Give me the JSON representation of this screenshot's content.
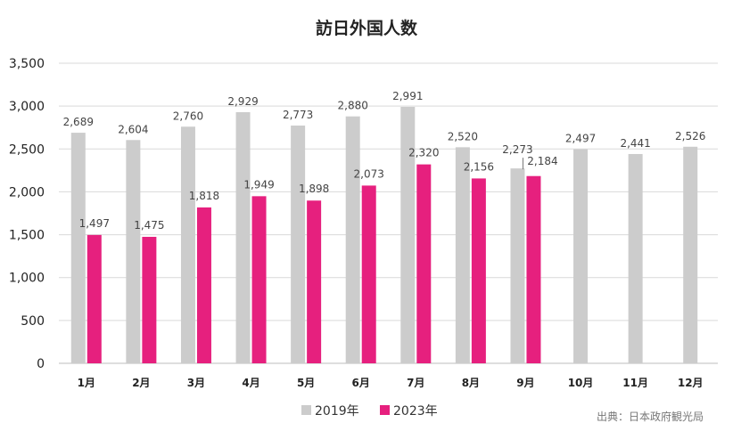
{
  "chart_data": {
    "type": "bar",
    "title": "訪日外国人数",
    "categories": [
      "1月",
      "2月",
      "3月",
      "4月",
      "5月",
      "6月",
      "7月",
      "8月",
      "9月",
      "10月",
      "11月",
      "12月"
    ],
    "series": [
      {
        "name": "2019年",
        "color": "#cccccc",
        "values": [
          2689,
          2604,
          2760,
          2929,
          2773,
          2880,
          2991,
          2520,
          2273,
          2497,
          2441,
          2526
        ],
        "labels": [
          "2,689",
          "2,604",
          "2,760",
          "2,929",
          "2,773",
          "2,880",
          "2,991",
          "2,520",
          "2,273",
          "2,497",
          "2,441",
          "2,526"
        ]
      },
      {
        "name": "2023年",
        "color": "#e6207e",
        "values": [
          1497,
          1475,
          1818,
          1949,
          1898,
          2073,
          2320,
          2156,
          2184,
          null,
          null,
          null
        ],
        "labels": [
          "1,497",
          "1,475",
          "1,818",
          "1,949",
          "1,898",
          "2,073",
          "2,320",
          "2,156",
          "2,184",
          "",
          "",
          ""
        ]
      }
    ],
    "ylim": [
      0,
      3500
    ],
    "yticks": [
      "0",
      "500",
      "1,000",
      "1,500",
      "2,000",
      "2,500",
      "3,000",
      "3,500"
    ],
    "grid": true,
    "legend_position": "bottom-center"
  },
  "source_note": "出典：日本政府観光局"
}
